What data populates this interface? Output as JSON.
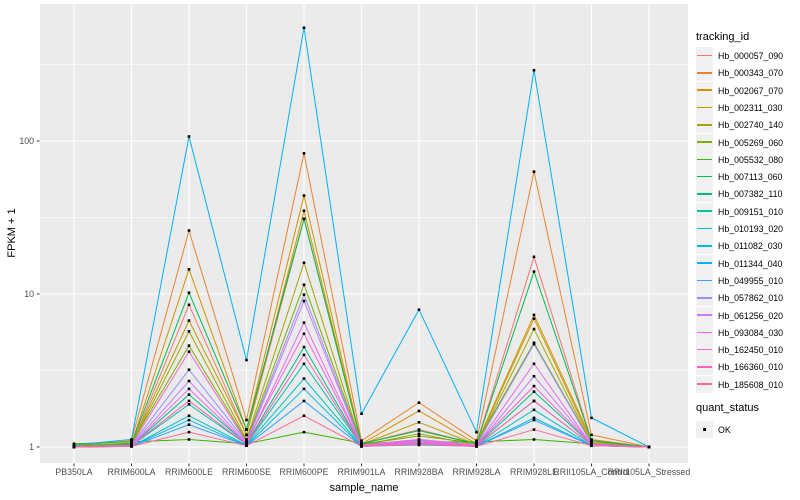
{
  "chart_data": {
    "type": "line",
    "title": "",
    "xlabel": "sample_name",
    "ylabel": "FPKM + 1",
    "y_scale": "log10",
    "y_ticks": [
      1,
      10,
      100
    ],
    "ylim_approx": [
      0.8,
      780
    ],
    "grid": "major-and-minor-horizontal, major-vertical-per-category",
    "legend_position": "right",
    "point_marker": "small-black-square",
    "categories": [
      "PB350LA",
      "RRIM600LA",
      "RRIM600LE",
      "RRIM600SE",
      "RRIM600PE",
      "RRIM901LA",
      "RRIM928BA",
      "RRIM928LA",
      "RRIM928LE",
      "RRII105LA_Control",
      "RRII105LA_Stressed"
    ],
    "series": [
      {
        "name": "Hb_000057_090",
        "color": "#F8766D",
        "values": [
          1.0,
          1.02,
          8.5,
          1.2,
          31,
          1.05,
          1.3,
          1.05,
          17.5,
          1.1,
          1.0
        ]
      },
      {
        "name": "Hb_000343_070",
        "color": "#EA8331",
        "values": [
          1.02,
          1.1,
          26,
          1.5,
          83,
          1.1,
          1.95,
          1.1,
          63,
          1.2,
          1.0
        ]
      },
      {
        "name": "Hb_002067_070",
        "color": "#D89000",
        "values": [
          1.0,
          1.05,
          14.5,
          1.3,
          44,
          1.05,
          1.72,
          1.05,
          7.3,
          1.12,
          1.0
        ]
      },
      {
        "name": "Hb_002311_030",
        "color": "#C09B00",
        "values": [
          1.01,
          1.04,
          6.7,
          1.2,
          35,
          1.04,
          1.45,
          1.04,
          6.9,
          1.08,
          1.0
        ]
      },
      {
        "name": "Hb_002740_140",
        "color": "#A3A500",
        "values": [
          1.0,
          1.03,
          5.7,
          1.12,
          16,
          1.03,
          1.22,
          1.03,
          5.9,
          1.05,
          1.0
        ]
      },
      {
        "name": "Hb_005269_060",
        "color": "#7CAE00",
        "values": [
          1.02,
          1.06,
          4.6,
          1.1,
          11.5,
          1.04,
          1.18,
          1.06,
          4.8,
          1.06,
          1.0
        ]
      },
      {
        "name": "Hb_005532_080",
        "color": "#39B600",
        "values": [
          1.05,
          1.08,
          1.12,
          1.05,
          1.25,
          1.06,
          1.08,
          1.08,
          1.12,
          1.05,
          1.0
        ]
      },
      {
        "name": "Hb_007113_060",
        "color": "#00BB4E",
        "values": [
          1.0,
          1.05,
          10.2,
          1.3,
          31,
          1.05,
          1.28,
          1.05,
          14,
          1.1,
          1.0
        ]
      },
      {
        "name": "Hb_007382_110",
        "color": "#00BF7D",
        "values": [
          1.0,
          1.02,
          2.2,
          1.05,
          4.5,
          1.02,
          1.1,
          1.02,
          2.3,
          1.04,
          1.0
        ]
      },
      {
        "name": "Hb_009151_010",
        "color": "#00C1A3",
        "values": [
          1.0,
          1.02,
          1.9,
          1.04,
          3.5,
          1.02,
          1.08,
          1.02,
          2.0,
          1.03,
          1.0
        ]
      },
      {
        "name": "Hb_010193_020",
        "color": "#00BFC4",
        "values": [
          1.0,
          1.01,
          1.6,
          1.03,
          2.8,
          1.01,
          1.05,
          1.01,
          1.75,
          1.02,
          1.0
        ]
      },
      {
        "name": "Hb_011082_030",
        "color": "#00BAE0",
        "values": [
          1.0,
          1.01,
          1.5,
          1.02,
          2.4,
          1.01,
          1.04,
          1.01,
          1.55,
          1.02,
          1.0
        ]
      },
      {
        "name": "Hb_011344_040",
        "color": "#00B0F6",
        "values": [
          1.03,
          1.12,
          107,
          3.7,
          550,
          1.65,
          7.9,
          1.25,
          290,
          1.55,
          1.0
        ]
      },
      {
        "name": "Hb_049955_010",
        "color": "#35A2FF",
        "values": [
          1.0,
          1.01,
          1.4,
          1.02,
          2.0,
          1.01,
          1.03,
          1.01,
          1.5,
          1.02,
          1.0
        ]
      },
      {
        "name": "Hb_057862_010",
        "color": "#9590FF",
        "values": [
          1.0,
          1.03,
          3.2,
          1.08,
          9.9,
          1.03,
          1.12,
          1.03,
          4.7,
          1.05,
          1.0
        ]
      },
      {
        "name": "Hb_061256_020",
        "color": "#C77CFF",
        "values": [
          1.0,
          1.02,
          2.7,
          1.06,
          9.0,
          1.02,
          1.1,
          1.02,
          2.9,
          1.04,
          1.0
        ]
      },
      {
        "name": "Hb_093084_030",
        "color": "#E76BF3",
        "values": [
          1.0,
          1.02,
          2.4,
          1.05,
          6.5,
          1.02,
          1.08,
          1.02,
          3.5,
          1.03,
          1.0
        ]
      },
      {
        "name": "Hb_162450_010",
        "color": "#FA62DB",
        "values": [
          1.0,
          1.03,
          4.2,
          1.08,
          5.5,
          1.03,
          1.12,
          1.03,
          2.5,
          1.04,
          1.0
        ]
      },
      {
        "name": "Hb_166360_010",
        "color": "#FF62BC",
        "values": [
          1.0,
          1.02,
          2.0,
          1.04,
          4.0,
          1.02,
          1.06,
          1.02,
          2.0,
          1.03,
          1.0
        ]
      },
      {
        "name": "Hb_185608_010",
        "color": "#FF6A98",
        "values": [
          1.0,
          1.01,
          1.25,
          1.02,
          1.6,
          1.01,
          1.04,
          1.01,
          1.3,
          1.02,
          1.0
        ]
      }
    ],
    "legend": {
      "tracking_title": "tracking_id",
      "quant_title": "quant_status",
      "quant_items": [
        {
          "label": "OK",
          "marker": "black-square"
        }
      ]
    },
    "theme": {
      "panel_bg": "#EBEBEB",
      "grid_color": "#FFFFFF",
      "legend_key_bg": "#F0F0F0",
      "tick_label_color": "#4D4D4D",
      "tick_mark_color": "#333333",
      "point_color": "#000000"
    }
  }
}
